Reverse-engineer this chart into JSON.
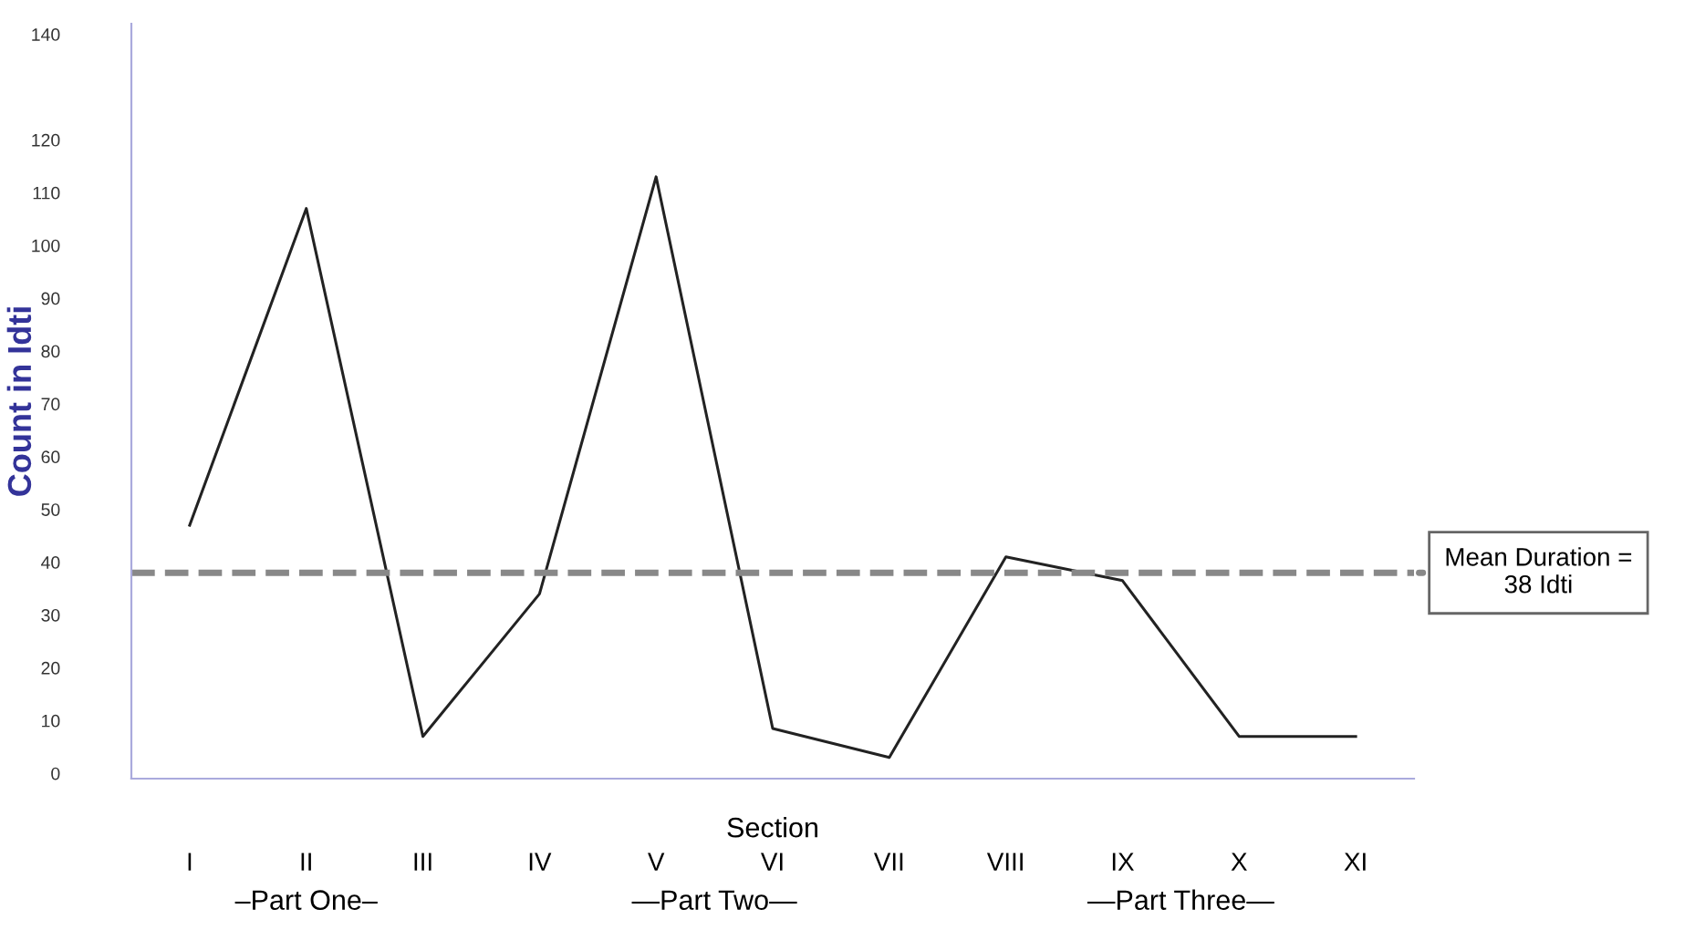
{
  "chart_data": {
    "type": "line",
    "xlabel": "Section",
    "ylabel": "Count in Idti",
    "categories": [
      "I",
      "II",
      "III",
      "IV",
      "V",
      "VI",
      "VII",
      "VIII",
      "IX",
      "X",
      "XI"
    ],
    "series": [
      {
        "color": "#222222",
        "values": [
          47,
          107,
          7,
          34,
          113,
          8.5,
          3,
          41,
          36.5,
          7,
          7
        ]
      }
    ],
    "ylim": [
      -1,
      142
    ],
    "yticks": [
      0,
      10,
      20,
      30,
      40,
      50,
      60,
      70,
      80,
      90,
      100,
      110,
      120,
      140
    ],
    "ref_lines": [
      {
        "axis": "y",
        "value": 38,
        "label": "Mean Duration =\n38 Idti",
        "color": "#888888",
        "line_style": "dashed"
      }
    ],
    "annotations": [
      "–Part One–",
      "—Part Two—",
      "—Part Three—"
    ],
    "grid": false,
    "legend": false,
    "marker": "none",
    "line_style": "solid"
  }
}
